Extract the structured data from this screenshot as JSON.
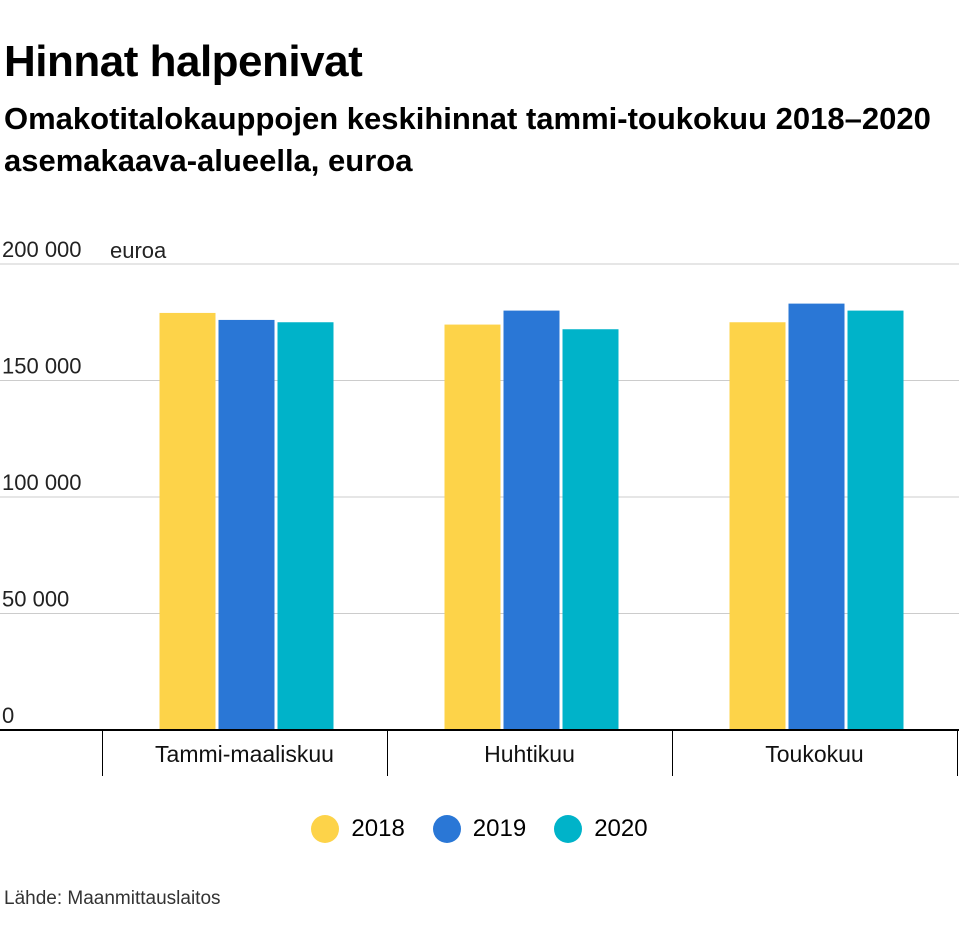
{
  "title": "Hinnat halpenivat",
  "subtitle": "Omakotitalokauppojen keskihinnat tammi-toukokuu 2018–2020 asemakaava-alueella, euroa",
  "source": "Lähde: Maanmittauslaitos",
  "chart_data": {
    "type": "bar",
    "unit_label": "euroa",
    "categories": [
      "Tammi-maaliskuu",
      "Huhtikuu",
      "Toukokuu"
    ],
    "series": [
      {
        "name": "2018",
        "color": "#fdd349",
        "values": [
          179000,
          174000,
          175000
        ]
      },
      {
        "name": "2019",
        "color": "#2a77d6",
        "values": [
          176000,
          180000,
          183000
        ]
      },
      {
        "name": "2020",
        "color": "#00b3c9",
        "values": [
          175000,
          172000,
          180000
        ]
      }
    ],
    "ylim": [
      0,
      200000
    ],
    "yticks": [
      0,
      50000,
      100000,
      150000,
      200000
    ],
    "ytick_labels": [
      "0",
      "50 000",
      "100 000",
      "150 000",
      "200 000"
    ],
    "grid": true,
    "legend_position": "bottom"
  }
}
